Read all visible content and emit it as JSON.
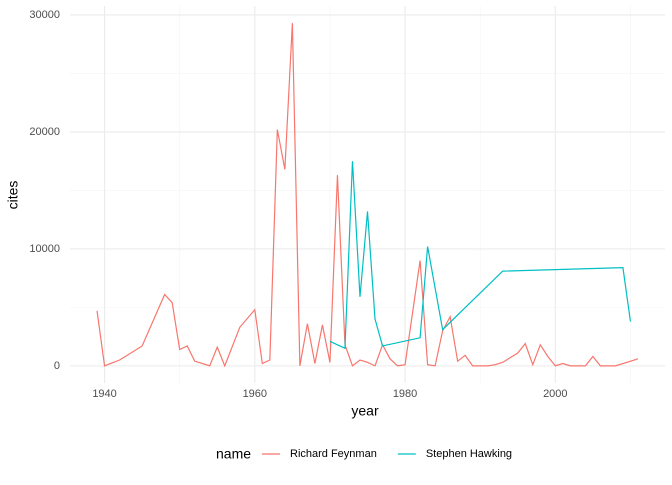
{
  "chart_data": {
    "type": "line",
    "x_label": "year",
    "y_label": "cites",
    "legend_title": "name",
    "legend_position": "bottom",
    "xlim": [
      1935.4,
      2014.6
    ],
    "ylim": [
      -1465,
      30765
    ],
    "xticks": [
      1940,
      1960,
      1980,
      2000
    ],
    "yticks": [
      0,
      10000,
      20000,
      30000
    ],
    "x_minor_breaks": [
      1950,
      1970,
      1990,
      2010
    ],
    "y_minor_breaks": [
      5000,
      15000,
      25000
    ],
    "grid": true,
    "series": [
      {
        "name": "Richard Feynman",
        "color": "#F8766D",
        "x": [
          1939,
          1940,
          1942,
          1945,
          1948,
          1949,
          1950,
          1951,
          1952,
          1954,
          1955,
          1956,
          1958,
          1960,
          1961,
          1962,
          1963,
          1964,
          1965,
          1966,
          1967,
          1968,
          1969,
          1970,
          1971,
          1972,
          1973,
          1974,
          1975,
          1976,
          1977,
          1978,
          1979,
          1980,
          1982,
          1983,
          1984,
          1985,
          1986,
          1987,
          1988,
          1989,
          1990,
          1991,
          1992,
          1993,
          1995,
          1996,
          1997,
          1998,
          1999,
          2000,
          2001,
          2002,
          2004,
          2005,
          2006,
          2008,
          2011
        ],
        "values": [
          4700,
          0,
          500,
          1700,
          6100,
          5400,
          1400,
          1700,
          400,
          0,
          1600,
          0,
          3300,
          4800,
          200,
          500,
          20200,
          16800,
          29300,
          0,
          3600,
          200,
          3500,
          300,
          16300,
          1800,
          0,
          500,
          300,
          0,
          1800,
          600,
          0,
          100,
          9000,
          100,
          0,
          3000,
          4200,
          400,
          900,
          0,
          0,
          0,
          100,
          300,
          1100,
          1900,
          100,
          1800,
          800,
          0,
          200,
          0,
          0,
          800,
          0,
          0,
          600
        ]
      },
      {
        "name": "Stephen Hawking",
        "color": "#00BFC4",
        "x": [
          1970,
          1972,
          1973,
          1974,
          1975,
          1976,
          1977,
          1982,
          1983,
          1985,
          1993,
          2009,
          2010
        ],
        "values": [
          2100,
          1500,
          17500,
          5900,
          13200,
          4000,
          1700,
          2400,
          10200,
          3100,
          8100,
          8400,
          3800
        ]
      }
    ]
  }
}
